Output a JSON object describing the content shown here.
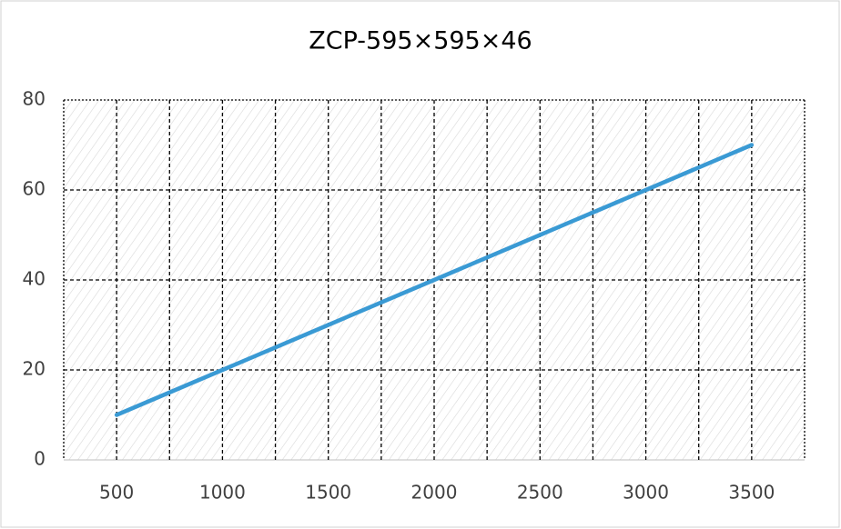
{
  "chart_data": {
    "type": "line",
    "title": "ZCP-595×595×46",
    "x": [
      500,
      1000,
      1500,
      2000,
      2500,
      3000,
      3500
    ],
    "series": [
      {
        "color": "#3a9ad4",
        "values": [
          10,
          20,
          30,
          40,
          50,
          60,
          70
        ]
      }
    ],
    "xlim": [
      250,
      3750
    ],
    "xticks": [
      500,
      1000,
      1500,
      2000,
      2500,
      3000,
      3500
    ],
    "xminorticks": [
      750,
      1250,
      1750,
      2250,
      2750,
      3250
    ],
    "ylim": [
      0,
      80
    ],
    "yticks": [
      0,
      20,
      40,
      60,
      80
    ],
    "grid": true
  }
}
